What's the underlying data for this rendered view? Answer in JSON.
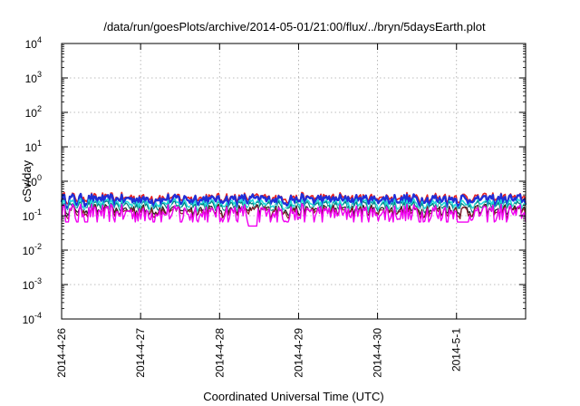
{
  "chart_data": {
    "type": "line",
    "title": "/data/run/goesPlots/archive/2014-05-01/21:00/flux/../bryn/5daysEarth.plot",
    "xlabel": "Coordinated Universal Time (UTC)",
    "ylabel": "cSv/day",
    "yscale": "log",
    "ylim": [
      0.0001,
      10000
    ],
    "xlim": [
      "2014-04-26 00:00",
      "2014-05-01 21:00"
    ],
    "grid": true,
    "x_ticks": [
      "2014-4-26",
      "2014-4-27",
      "2014-4-28",
      "2014-4-29",
      "2014-4-30",
      "2014-5-1"
    ],
    "y_ticks": [
      {
        "value": 10000,
        "base": "10",
        "exp": "4"
      },
      {
        "value": 1000,
        "base": "10",
        "exp": "3"
      },
      {
        "value": 100,
        "base": "10",
        "exp": "2"
      },
      {
        "value": 10,
        "base": "10",
        "exp": "1"
      },
      {
        "value": 1,
        "base": "10",
        "exp": "0"
      },
      {
        "value": 0.1,
        "base": "10",
        "exp": "-1"
      },
      {
        "value": 0.01,
        "base": "10",
        "exp": "-2"
      },
      {
        "value": 0.001,
        "base": "10",
        "exp": "-3"
      },
      {
        "value": 0.0001,
        "base": "10",
        "exp": "-4"
      }
    ],
    "series": [
      {
        "color": "#e8201f",
        "level": 0.34,
        "var": 0.1,
        "width": 1.6
      },
      {
        "color": "#1f2fd8",
        "level": 0.3,
        "var": 0.1,
        "width": 2.4
      },
      {
        "color": "#20d8d8",
        "level": 0.22,
        "var": 0.07,
        "width": 1.6
      },
      {
        "color": "#008080",
        "level": 0.19,
        "var": 0.06,
        "width": 1.2
      },
      {
        "color": "#ffffff",
        "level": 0.17,
        "var": 0.05,
        "width": 1.2
      },
      {
        "color": "#202020",
        "level": 0.15,
        "var": 0.05,
        "width": 1.2
      },
      {
        "color": "#8a1a2a",
        "level": 0.14,
        "var": 0.05,
        "width": 1.2
      },
      {
        "color": "#f000f0",
        "level": 0.12,
        "var": 0.08,
        "width": 1.4
      }
    ],
    "dips": [
      {
        "x": "2014-04-28 10:00",
        "min": 0.05
      },
      {
        "x": "2014-05-01 02:00",
        "min": 0.065
      }
    ]
  }
}
